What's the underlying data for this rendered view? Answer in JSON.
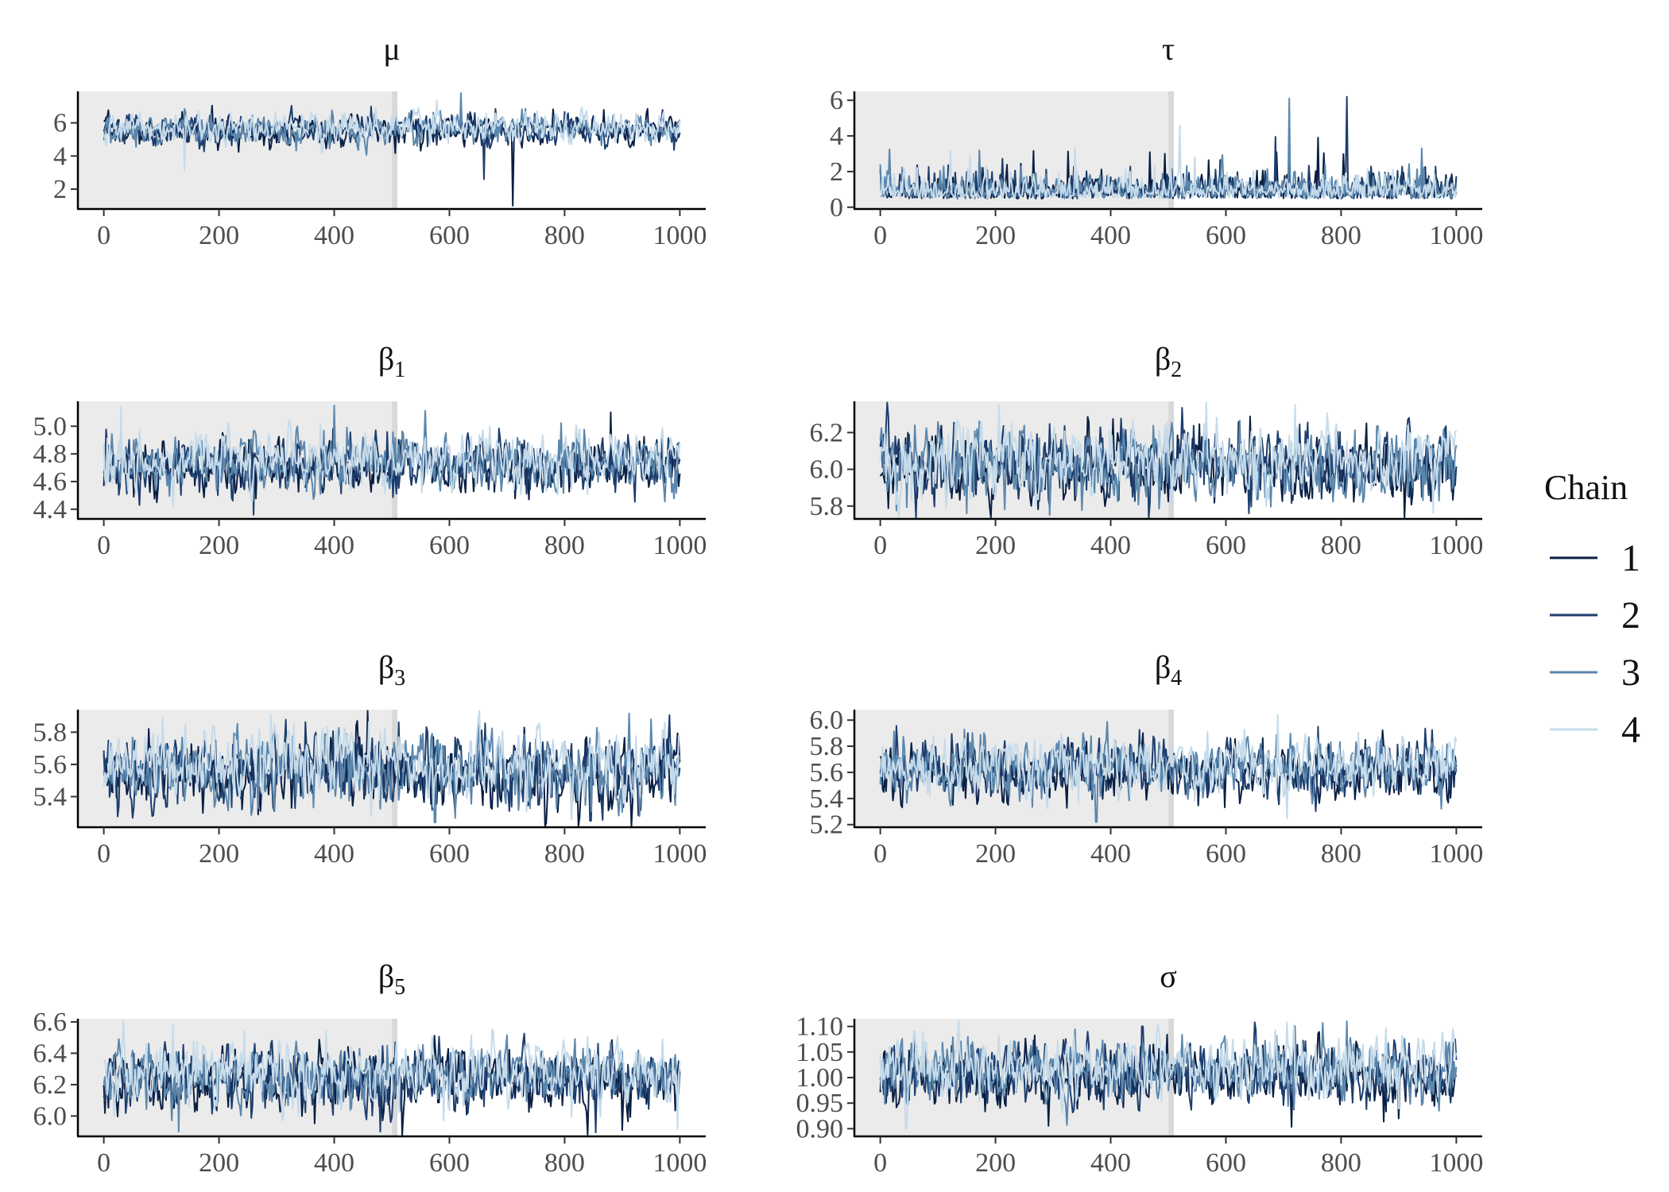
{
  "figure": {
    "legend": {
      "title": "Chain",
      "placement": "right",
      "entries": [
        {
          "label": "1",
          "color": "#0a1f44"
        },
        {
          "label": "2",
          "color": "#1d3e6e"
        },
        {
          "label": "3",
          "color": "#5b87ad"
        },
        {
          "label": "4",
          "color": "#c6dbea"
        }
      ]
    },
    "shading": {
      "color": "#ebebeb",
      "border_color": "#d9d9d9",
      "description": "warmup iterations 0-500 shaded"
    }
  },
  "chart_data": [
    {
      "type": "line",
      "title": "μ",
      "title_base": "μ",
      "title_sub": "",
      "xlabel": "",
      "ylabel": "",
      "xlim": [
        -45,
        1045
      ],
      "ylim": [
        0.8,
        7.9
      ],
      "xticks": [
        "0",
        "200",
        "400",
        "600",
        "800",
        "1000"
      ],
      "xtick_values": [
        0,
        200,
        400,
        600,
        800,
        1000
      ],
      "yticks": [
        "2",
        "4",
        "6"
      ],
      "ytick_values": [
        2,
        4,
        6
      ],
      "warmup": [
        0,
        505
      ],
      "trace": {
        "center": 5.6,
        "spread": 0.45,
        "extremes": [
          [
            140,
            3.1
          ],
          [
            620,
            7.8
          ],
          [
            660,
            2.6
          ],
          [
            710,
            1.0
          ]
        ]
      },
      "series": [
        {
          "name": "1"
        },
        {
          "name": "2"
        },
        {
          "name": "3"
        },
        {
          "name": "4"
        }
      ]
    },
    {
      "type": "line",
      "title": "τ",
      "title_base": "τ",
      "title_sub": "",
      "xlabel": "",
      "ylabel": "",
      "xlim": [
        -45,
        1045
      ],
      "ylim": [
        -0.1,
        6.5
      ],
      "xticks": [
        "0",
        "200",
        "400",
        "600",
        "800",
        "1000"
      ],
      "xtick_values": [
        0,
        200,
        400,
        600,
        800,
        1000
      ],
      "yticks": [
        "0",
        "2",
        "4",
        "6"
      ],
      "ytick_values": [
        0,
        2,
        4,
        6
      ],
      "warmup": [
        0,
        505
      ],
      "trace": {
        "center": 0.8,
        "spread": 0.7,
        "positive": true,
        "extremes": [
          [
            520,
            4.6
          ],
          [
            710,
            6.1
          ],
          [
            810,
            6.2
          ],
          [
            760,
            3.9
          ]
        ]
      },
      "series": [
        {
          "name": "1"
        },
        {
          "name": "2"
        },
        {
          "name": "3"
        },
        {
          "name": "4"
        }
      ]
    },
    {
      "type": "line",
      "title": "β1",
      "title_base": "β",
      "title_sub": "1",
      "xlabel": "",
      "ylabel": "",
      "xlim": [
        -45,
        1045
      ],
      "ylim": [
        4.33,
        5.18
      ],
      "xticks": [
        "0",
        "200",
        "400",
        "600",
        "800",
        "1000"
      ],
      "xtick_values": [
        0,
        200,
        400,
        600,
        800,
        1000
      ],
      "yticks": [
        "4.4",
        "4.6",
        "4.8",
        "5.0"
      ],
      "ytick_values": [
        4.4,
        4.6,
        4.8,
        5.0
      ],
      "warmup": [
        0,
        505
      ],
      "trace": {
        "center": 4.73,
        "spread": 0.1,
        "extremes": [
          [
            30,
            5.14
          ],
          [
            400,
            5.15
          ],
          [
            260,
            4.36
          ],
          [
            880,
            5.1
          ]
        ]
      },
      "series": [
        {
          "name": "1"
        },
        {
          "name": "2"
        },
        {
          "name": "3"
        },
        {
          "name": "4"
        }
      ]
    },
    {
      "type": "line",
      "title": "β2",
      "title_base": "β",
      "title_sub": "2",
      "xlabel": "",
      "ylabel": "",
      "xlim": [
        -45,
        1045
      ],
      "ylim": [
        5.73,
        6.37
      ],
      "xticks": [
        "0",
        "200",
        "400",
        "600",
        "800",
        "1000"
      ],
      "xtick_values": [
        0,
        200,
        400,
        600,
        800,
        1000
      ],
      "yticks": [
        "5.8",
        "6.0",
        "6.2"
      ],
      "ytick_values": [
        5.8,
        6.0,
        6.2
      ],
      "warmup": [
        0,
        505
      ],
      "trace": {
        "center": 6.03,
        "spread": 0.1,
        "extremes": [
          [
            720,
            6.35
          ],
          [
            150,
            5.76
          ],
          [
            640,
            5.76
          ]
        ]
      },
      "series": [
        {
          "name": "1"
        },
        {
          "name": "2"
        },
        {
          "name": "3"
        },
        {
          "name": "4"
        }
      ]
    },
    {
      "type": "line",
      "title": "β3",
      "title_base": "β",
      "title_sub": "3",
      "xlabel": "",
      "ylabel": "",
      "xlim": [
        -45,
        1045
      ],
      "ylim": [
        5.21,
        5.94
      ],
      "xticks": [
        "0",
        "200",
        "400",
        "600",
        "800",
        "1000"
      ],
      "xtick_values": [
        0,
        200,
        400,
        600,
        800,
        1000
      ],
      "yticks": [
        "5.4",
        "5.6",
        "5.8"
      ],
      "ytick_values": [
        5.4,
        5.6,
        5.8
      ],
      "warmup": [
        0,
        505
      ],
      "trace": {
        "center": 5.57,
        "spread": 0.11,
        "extremes": [
          [
            290,
            5.91
          ],
          [
            575,
            5.24
          ],
          [
            845,
            5.25
          ],
          [
            440,
            5.87
          ]
        ]
      },
      "series": [
        {
          "name": "1"
        },
        {
          "name": "2"
        },
        {
          "name": "3"
        },
        {
          "name": "4"
        }
      ]
    },
    {
      "type": "line",
      "title": "β4",
      "title_base": "β",
      "title_sub": "4",
      "xlabel": "",
      "ylabel": "",
      "xlim": [
        -45,
        1045
      ],
      "ylim": [
        5.18,
        6.08
      ],
      "xticks": [
        "0",
        "200",
        "400",
        "600",
        "800",
        "1000"
      ],
      "xtick_values": [
        0,
        200,
        400,
        600,
        800,
        1000
      ],
      "yticks": [
        "5.2",
        "5.4",
        "5.6",
        "5.8",
        "6.0"
      ],
      "ytick_values": [
        5.2,
        5.4,
        5.6,
        5.8,
        6.0
      ],
      "warmup": [
        0,
        505
      ],
      "trace": {
        "center": 5.63,
        "spread": 0.11,
        "extremes": [
          [
            690,
            6.04
          ],
          [
            375,
            5.22
          ],
          [
            760,
            5.95
          ]
        ]
      },
      "series": [
        {
          "name": "1"
        },
        {
          "name": "2"
        },
        {
          "name": "3"
        },
        {
          "name": "4"
        }
      ]
    },
    {
      "type": "line",
      "title": "β5",
      "title_base": "β",
      "title_sub": "5",
      "xlabel": "",
      "ylabel": "",
      "xlim": [
        -45,
        1045
      ],
      "ylim": [
        5.87,
        6.62
      ],
      "xticks": [
        "0",
        "200",
        "400",
        "600",
        "800",
        "1000"
      ],
      "xtick_values": [
        0,
        200,
        400,
        600,
        800,
        1000
      ],
      "yticks": [
        "6.0",
        "6.2",
        "6.4",
        "6.6"
      ],
      "ytick_values": [
        6.0,
        6.2,
        6.4,
        6.6
      ],
      "warmup": [
        0,
        505
      ],
      "trace": {
        "center": 6.25,
        "spread": 0.1,
        "extremes": [
          [
            120,
            6.58
          ],
          [
            130,
            5.9
          ],
          [
            480,
            5.9
          ],
          [
            900,
            5.91
          ]
        ]
      },
      "series": [
        {
          "name": "1"
        },
        {
          "name": "2"
        },
        {
          "name": "3"
        },
        {
          "name": "4"
        }
      ]
    },
    {
      "type": "line",
      "title": "σ",
      "title_base": "σ",
      "title_sub": "",
      "xlabel": "",
      "ylabel": "",
      "xlim": [
        -45,
        1045
      ],
      "ylim": [
        0.885,
        1.115
      ],
      "xticks": [
        "0",
        "200",
        "400",
        "600",
        "800",
        "1000"
      ],
      "xtick_values": [
        0,
        200,
        400,
        600,
        800,
        1000
      ],
      "yticks": [
        "0.90",
        "0.95",
        "1.00",
        "1.05",
        "1.10"
      ],
      "ytick_values": [
        0.9,
        0.95,
        1.0,
        1.05,
        1.1
      ],
      "warmup": [
        0,
        505
      ],
      "trace": {
        "center": 1.01,
        "spread": 0.03,
        "extremes": [
          [
            45,
            0.9
          ],
          [
            810,
            1.11
          ],
          [
            455,
            1.1
          ],
          [
            900,
            0.92
          ]
        ]
      },
      "series": [
        {
          "name": "1"
        },
        {
          "name": "2"
        },
        {
          "name": "3"
        },
        {
          "name": "4"
        }
      ]
    }
  ]
}
